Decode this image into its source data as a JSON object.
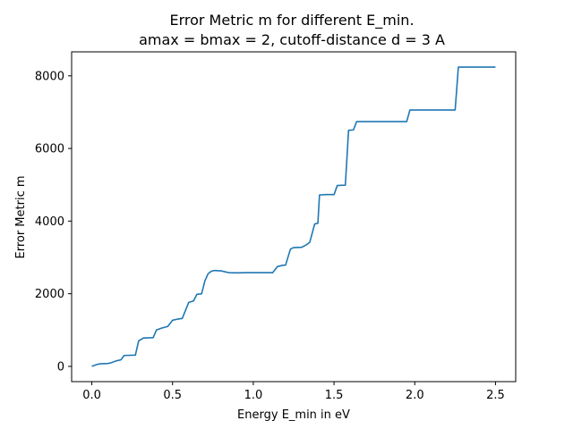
{
  "chart_data": {
    "type": "line",
    "title_line1": "Error Metric m for different E_min.",
    "title_line2": "amax = bmax = 2, cutoff-distance d = 3 A",
    "xlabel": "Energy E_min in eV",
    "ylabel": "Error Metric m",
    "xlim": [
      -0.125,
      2.625
    ],
    "ylim": [
      -420,
      8660
    ],
    "xticks": [
      0.0,
      0.5,
      1.0,
      1.5,
      2.0,
      2.5
    ],
    "xtick_labels": [
      "0.0",
      "0.5",
      "1.0",
      "1.5",
      "2.0",
      "2.5"
    ],
    "yticks": [
      0,
      2000,
      4000,
      6000,
      8000
    ],
    "ytick_labels": [
      "0",
      "2000",
      "4000",
      "6000",
      "8000"
    ],
    "series": [
      {
        "name": "m",
        "color": "#1f77b4",
        "x": [
          0.0,
          0.03,
          0.05,
          0.1,
          0.12,
          0.15,
          0.18,
          0.2,
          0.27,
          0.29,
          0.32,
          0.38,
          0.4,
          0.43,
          0.47,
          0.5,
          0.53,
          0.56,
          0.6,
          0.63,
          0.65,
          0.68,
          0.7,
          0.72,
          0.74,
          0.76,
          0.8,
          0.85,
          0.9,
          0.95,
          1.0,
          1.05,
          1.1,
          1.12,
          1.15,
          1.18,
          1.2,
          1.23,
          1.25,
          1.3,
          1.33,
          1.35,
          1.38,
          1.4,
          1.41,
          1.45,
          1.5,
          1.52,
          1.57,
          1.59,
          1.62,
          1.64,
          1.7,
          1.8,
          1.9,
          1.95,
          1.97,
          2.0,
          2.1,
          2.2,
          2.25,
          2.27,
          2.3,
          2.4,
          2.5
        ],
        "y": [
          0,
          50,
          70,
          80,
          100,
          150,
          180,
          300,
          310,
          700,
          780,
          790,
          1000,
          1050,
          1100,
          1270,
          1300,
          1320,
          1760,
          1800,
          1980,
          2000,
          2350,
          2550,
          2620,
          2640,
          2630,
          2580,
          2575,
          2580,
          2580,
          2580,
          2580,
          2580,
          2750,
          2780,
          2790,
          3230,
          3270,
          3280,
          3350,
          3420,
          3920,
          3940,
          4720,
          4730,
          4730,
          4980,
          4990,
          6500,
          6510,
          6740,
          6740,
          6740,
          6740,
          6740,
          7060,
          7060,
          7060,
          7060,
          7060,
          8240,
          8240,
          8240,
          8240
        ]
      }
    ]
  }
}
